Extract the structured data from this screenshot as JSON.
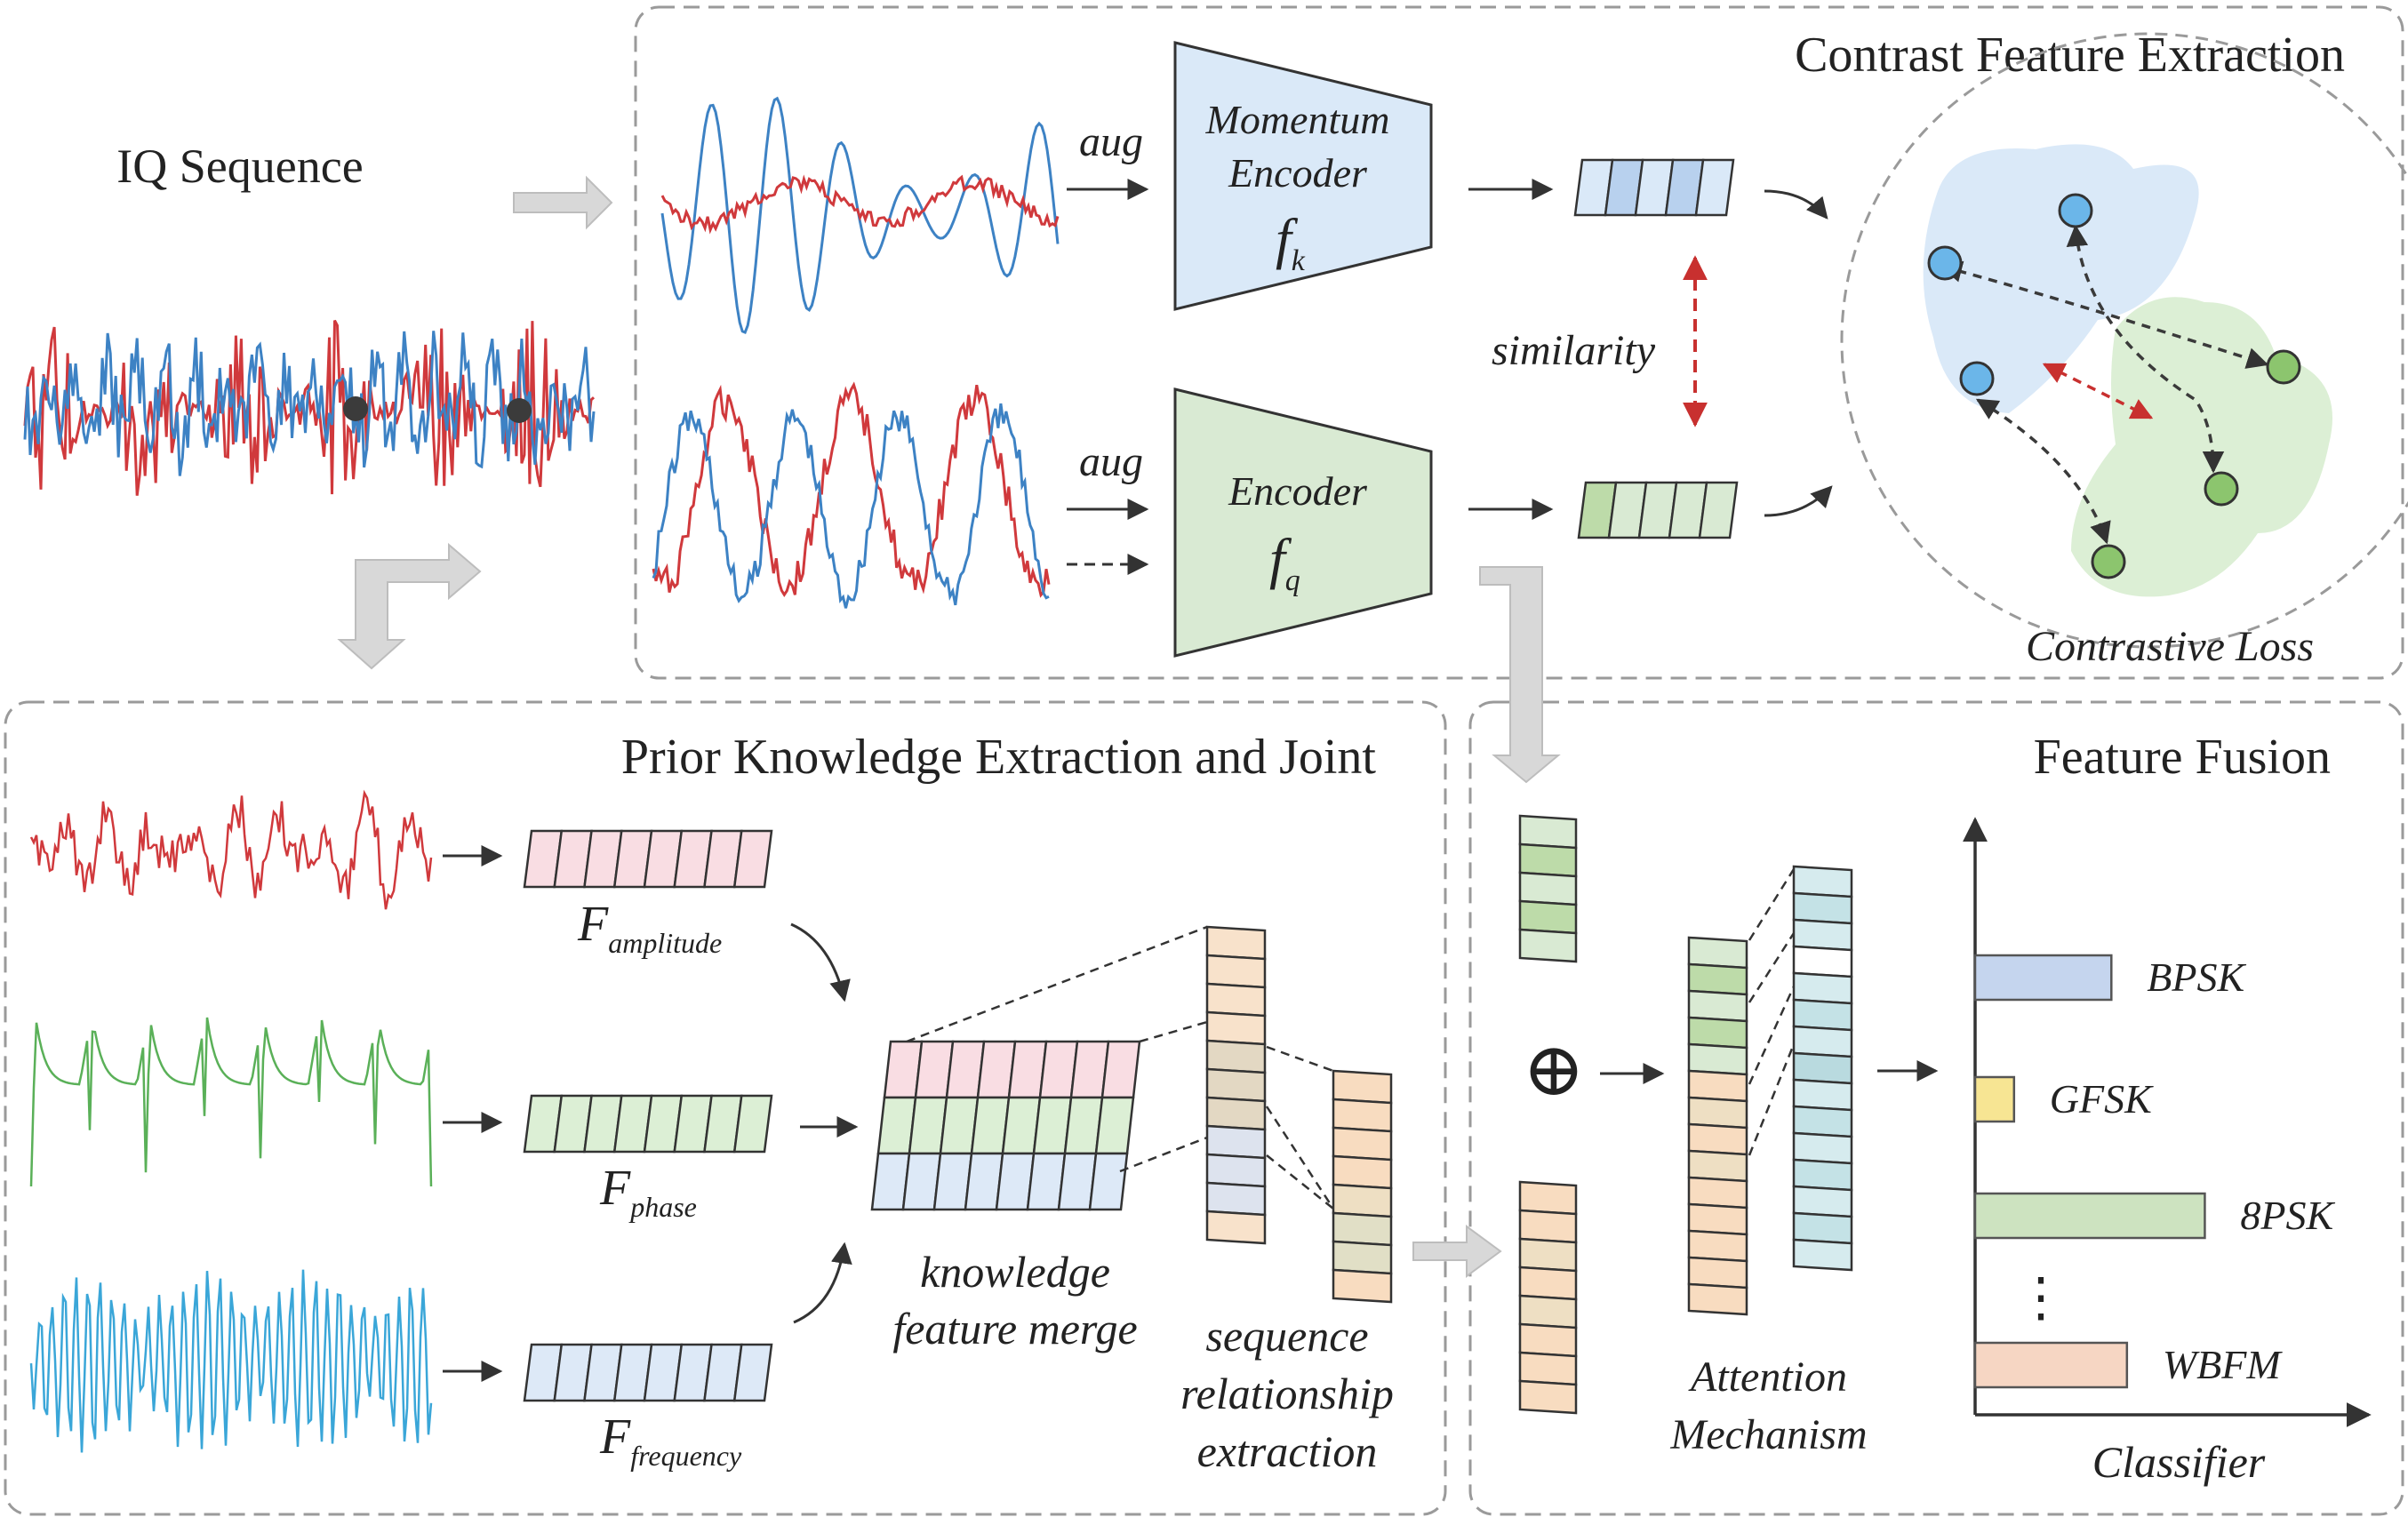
{
  "iq_sequence": {
    "title": "IQ Sequence"
  },
  "contrast": {
    "title": "Contrast Feature Extraction",
    "aug_label": "aug",
    "momentum_encoder": {
      "line1": "Momentum",
      "line2": "Encoder",
      "symbol": "f",
      "subscript": "k"
    },
    "encoder": {
      "line1": "Encoder",
      "symbol": "f",
      "subscript": "q"
    },
    "similarity": "similarity",
    "loss": "Contrastive Loss"
  },
  "prior": {
    "title": "Prior Knowledge Extraction and Joint",
    "amplitude": {
      "symbol": "F",
      "subscript": "amplitude"
    },
    "phase": {
      "symbol": "F",
      "subscript": "phase"
    },
    "frequency": {
      "symbol": "F",
      "subscript": "frequency"
    },
    "merge": {
      "line1": "knowledge",
      "line2": "feature merge"
    },
    "sequence": {
      "line1": "sequence",
      "line2": "relationship",
      "line3": "extraction"
    }
  },
  "fusion": {
    "title": "Feature Fusion",
    "plus_symbol": "⊕",
    "attention": {
      "line1": "Attention",
      "line2": "Mechanism"
    },
    "classifier_label": "Classifier",
    "ellipsis": "⋮"
  },
  "chart_data": {
    "type": "bar",
    "orientation": "horizontal",
    "categories": [
      "BPSK",
      "GFSK",
      "8PSK",
      "WBFM"
    ],
    "values": [
      0.35,
      0.1,
      0.59,
      0.39
    ],
    "xlabel": "Classifier",
    "colors": [
      "#c5d5ee",
      "#f7e593",
      "#cde3c0",
      "#f6d6c3"
    ]
  },
  "colors": {
    "red_signal": "#d0393c",
    "blue_signal": "#3d82c4",
    "green_signal": "#5ab058",
    "cyan_signal": "#3aa6d8",
    "momentum_fill": "#dae9f8",
    "encoder_fill": "#d9ead3",
    "amplitude_fill": "#f9dde3",
    "phase_fill": "#dcefd5",
    "frequency_fill": "#dde9f7",
    "peach_fill": "#f8e2cb",
    "teal_fill": "#d6ebee",
    "gray_arrow": "#d6d6d6"
  }
}
